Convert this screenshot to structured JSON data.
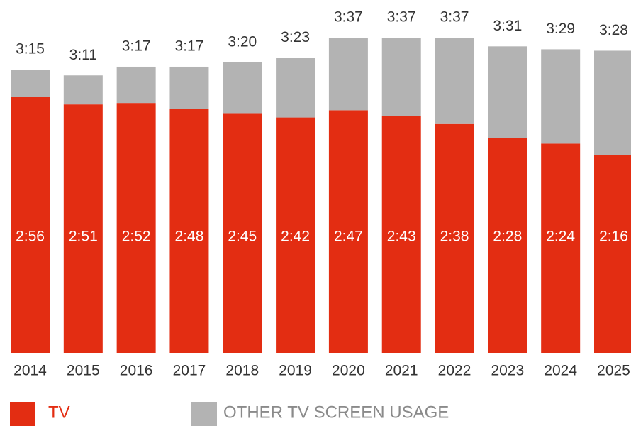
{
  "chart_data": {
    "type": "stacked_bar",
    "categories": [
      "2014",
      "2015",
      "2016",
      "2017",
      "2018",
      "2019",
      "2020",
      "2021",
      "2022",
      "2023",
      "2024",
      "2025"
    ],
    "series": [
      {
        "name": "TV",
        "color": "#e32d12",
        "values": [
          176,
          171,
          172,
          168,
          165,
          162,
          167,
          163,
          158,
          148,
          144,
          136
        ],
        "value_labels": [
          "2:56",
          "2:51",
          "2:52",
          "2:48",
          "2:45",
          "2:42",
          "2:47",
          "2:43",
          "2:38",
          "2:28",
          "2:24",
          "2:16"
        ]
      },
      {
        "name": "OTHER TV SCREEN USAGE",
        "color": "#b3b3b3",
        "values": [
          19,
          20,
          25,
          29,
          35,
          41,
          50,
          54,
          59,
          63,
          65,
          72
        ]
      }
    ],
    "totals": [
      195,
      191,
      197,
      197,
      200,
      203,
      217,
      217,
      217,
      211,
      209,
      208
    ],
    "total_labels": [
      "3:15",
      "3:11",
      "3:17",
      "3:17",
      "3:20",
      "3:23",
      "3:37",
      "3:37",
      "3:37",
      "3:31",
      "3:29",
      "3:28"
    ],
    "ylim": [
      0,
      240
    ]
  }
}
